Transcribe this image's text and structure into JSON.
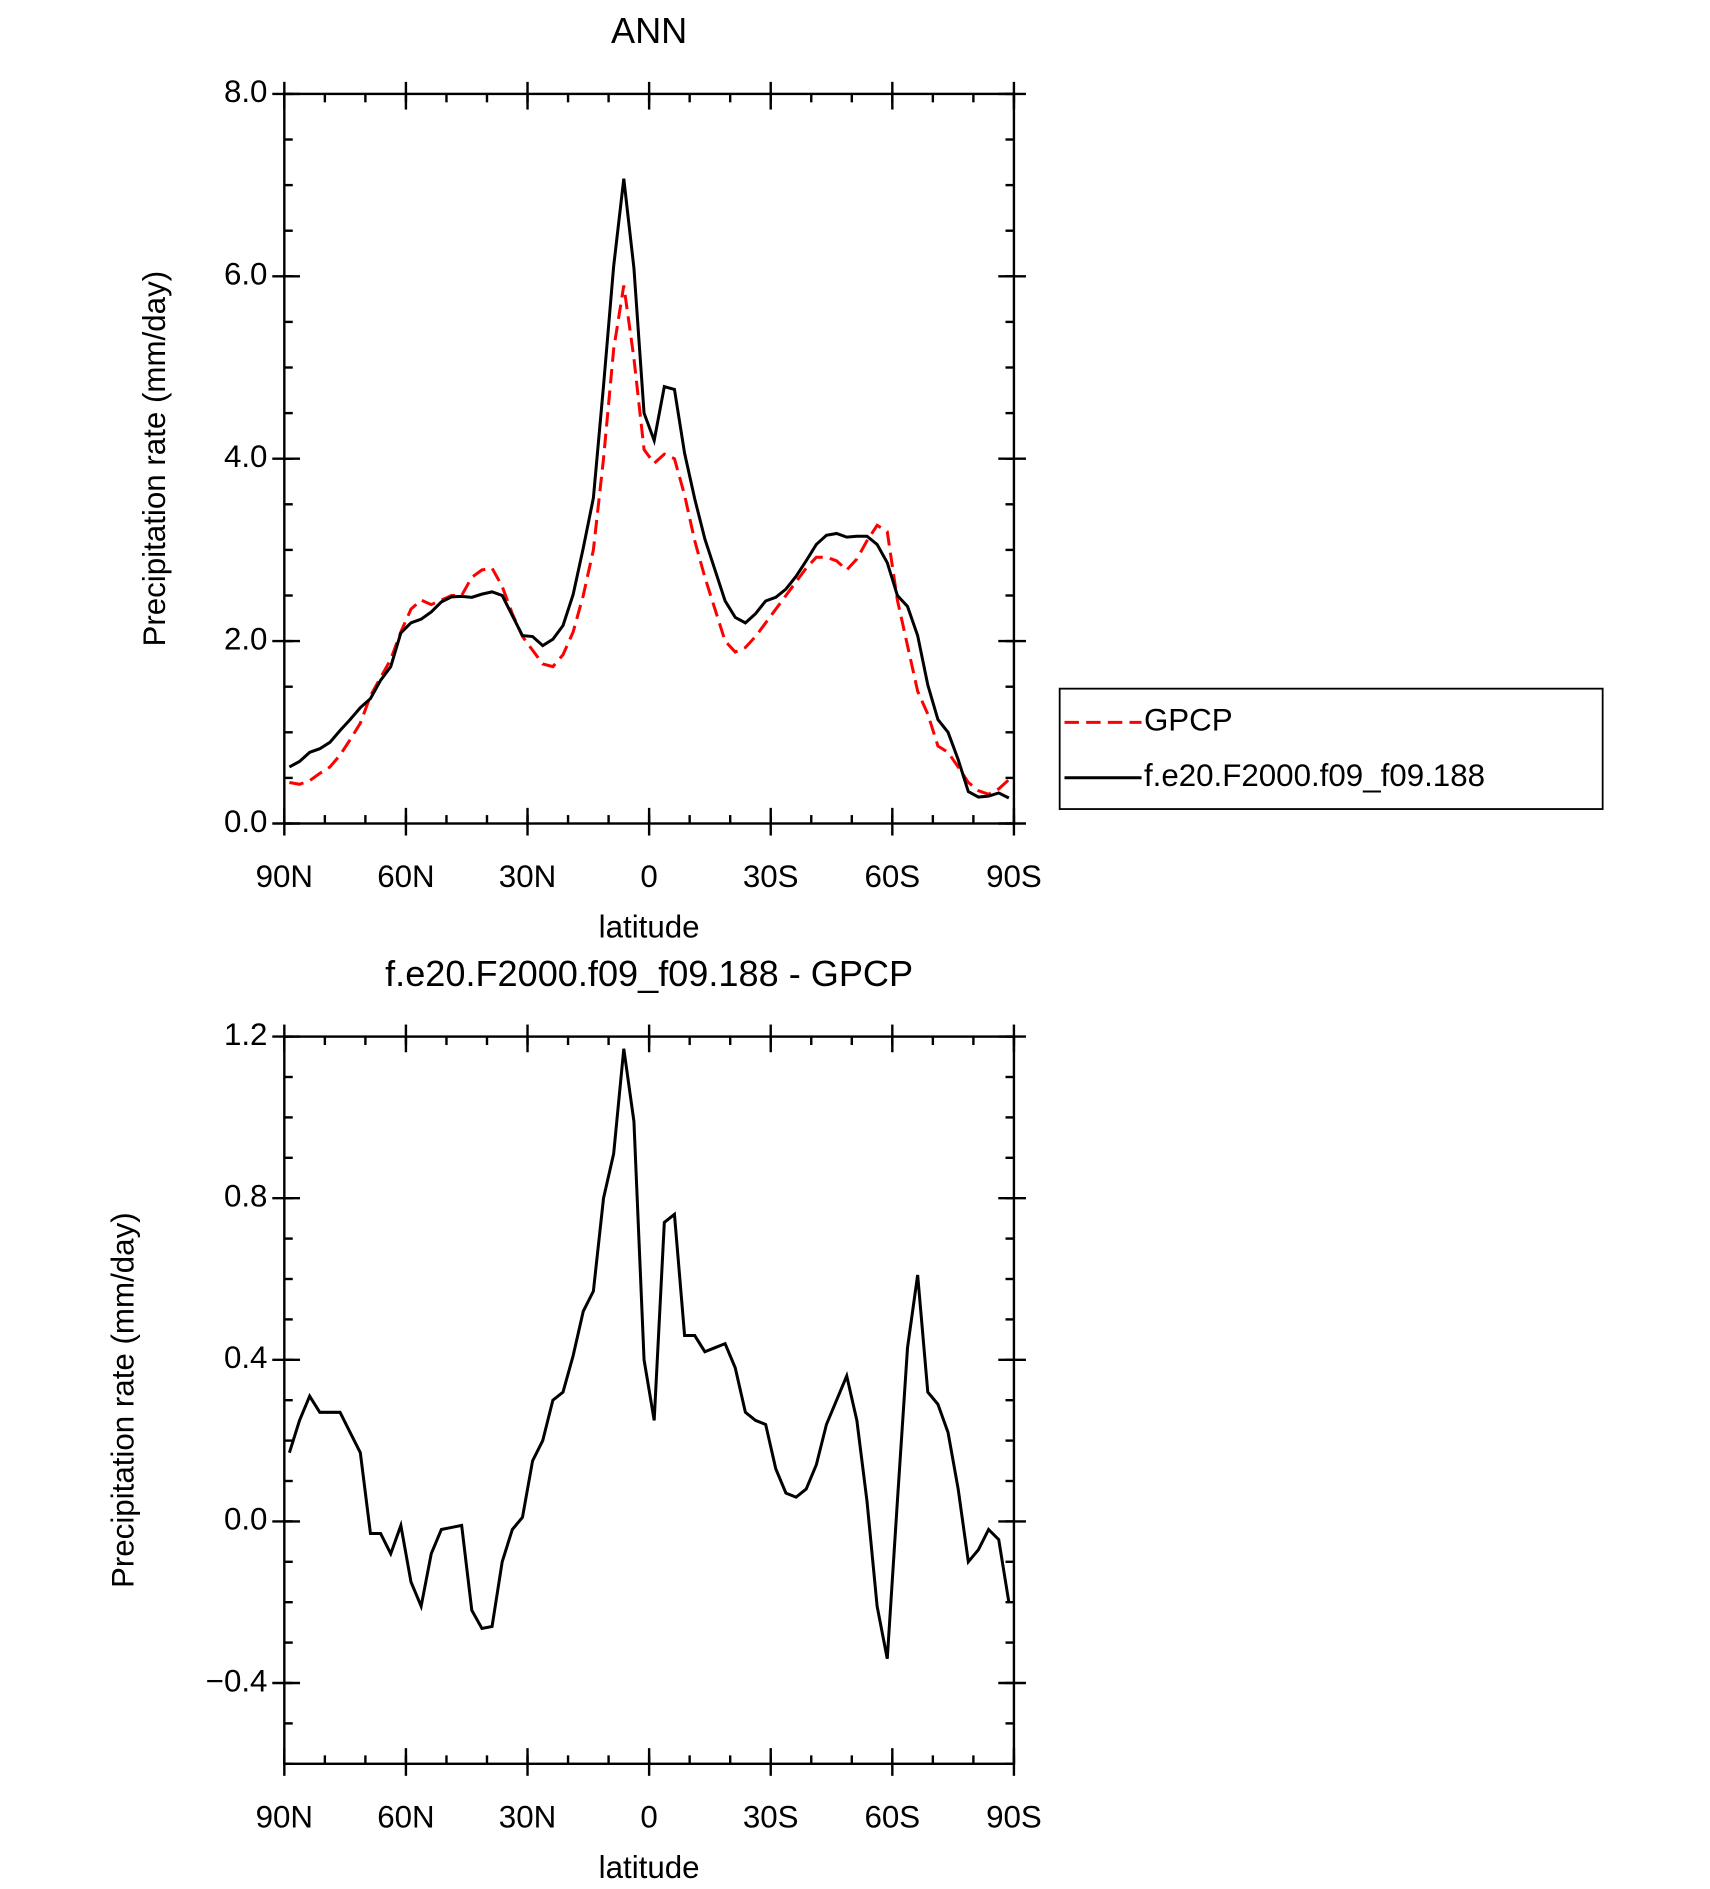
{
  "chart_data": [
    {
      "type": "line",
      "title": "ANN",
      "x_label": "latitude",
      "y_label": "Precipitation rate (mm/day)",
      "xlim": [
        90,
        -90
      ],
      "xticks": [
        {
          "value": 90,
          "label": "90N"
        },
        {
          "value": 60,
          "label": "60N"
        },
        {
          "value": 30,
          "label": "30N"
        },
        0,
        {
          "value": -30,
          "label": "30S"
        },
        {
          "value": -60,
          "label": "60S"
        },
        {
          "value": -90,
          "label": "90S"
        }
      ],
      "ylim": [
        0,
        8
      ],
      "yticks": [
        {
          "value": 0,
          "label": "0.0"
        },
        {
          "value": 2,
          "label": "2.0"
        },
        {
          "value": 4,
          "label": "4.0"
        },
        {
          "value": 6,
          "label": "6.0"
        },
        {
          "value": 8,
          "label": "8.0"
        }
      ],
      "legend": "right",
      "x": [
        88.75,
        86.25,
        83.75,
        81.25,
        78.75,
        76.25,
        73.75,
        71.25,
        68.75,
        66.25,
        63.75,
        61.25,
        58.75,
        56.25,
        53.75,
        51.25,
        48.75,
        46.25,
        43.75,
        41.25,
        38.75,
        36.25,
        33.75,
        31.25,
        28.75,
        26.25,
        23.75,
        21.25,
        18.75,
        16.25,
        13.75,
        11.25,
        8.75,
        6.25,
        3.75,
        1.25,
        -1.25,
        -3.75,
        -6.25,
        -8.75,
        -11.25,
        -13.75,
        -16.25,
        -18.75,
        -21.25,
        -23.75,
        -26.25,
        -28.75,
        -31.25,
        -33.75,
        -36.25,
        -38.75,
        -41.25,
        -43.75,
        -46.25,
        -48.75,
        -51.25,
        -53.75,
        -56.25,
        -58.75,
        -61.25,
        -63.75,
        -66.25,
        -68.75,
        -71.25,
        -73.75,
        -76.25,
        -78.75,
        -81.25,
        -83.75,
        -86.25,
        -88.75
      ],
      "series": [
        {
          "name": "GPCP",
          "color": "#ff0000",
          "dashed": true,
          "values": [
            0.45,
            0.43,
            0.47,
            0.55,
            0.62,
            0.75,
            0.92,
            1.1,
            1.4,
            1.6,
            1.8,
            2.1,
            2.35,
            2.45,
            2.4,
            2.45,
            2.5,
            2.5,
            2.7,
            2.78,
            2.8,
            2.6,
            2.3,
            2.05,
            1.9,
            1.75,
            1.72,
            1.85,
            2.1,
            2.5,
            3.0,
            4.0,
            5.2,
            5.9,
            5.1,
            4.1,
            3.95,
            4.05,
            4.0,
            3.6,
            3.1,
            2.7,
            2.35,
            2.0,
            1.88,
            1.93,
            2.05,
            2.2,
            2.35,
            2.5,
            2.65,
            2.8,
            2.92,
            2.92,
            2.88,
            2.78,
            2.9,
            3.1,
            3.27,
            3.2,
            2.45,
            1.95,
            1.45,
            1.2,
            0.85,
            0.78,
            0.62,
            0.45,
            0.36,
            0.32,
            0.38,
            0.48
          ]
        },
        {
          "name": "f.e20.F2000.f09_f09.188",
          "color": "#000000",
          "dashed": false,
          "values": [
            0.62,
            0.68,
            0.78,
            0.82,
            0.89,
            1.02,
            1.14,
            1.27,
            1.37,
            1.57,
            1.72,
            2.09,
            2.2,
            2.24,
            2.32,
            2.43,
            2.485,
            2.49,
            2.48,
            2.515,
            2.54,
            2.5,
            2.28,
            2.06,
            2.05,
            1.95,
            2.02,
            2.17,
            2.51,
            3.02,
            3.57,
            4.8,
            6.11,
            7.07,
            6.09,
            4.5,
            4.2,
            4.79,
            4.76,
            4.06,
            3.56,
            3.12,
            2.78,
            2.44,
            2.26,
            2.2,
            2.3,
            2.44,
            2.48,
            2.57,
            2.71,
            2.88,
            3.06,
            3.16,
            3.18,
            3.14,
            3.15,
            3.15,
            3.06,
            2.86,
            2.5,
            2.38,
            2.06,
            1.52,
            1.14,
            1.0,
            0.7,
            0.35,
            0.29,
            0.3,
            0.335,
            0.28
          ]
        }
      ]
    },
    {
      "type": "line",
      "title": "f.e20.F2000.f09_f09.188 - GPCP",
      "x_label": "latitude",
      "y_label": "Precipitation rate (mm/day)",
      "xlim": [
        90,
        -90
      ],
      "xticks": [
        {
          "value": 90,
          "label": "90N"
        },
        {
          "value": 60,
          "label": "60N"
        },
        {
          "value": 30,
          "label": "30N"
        },
        0,
        {
          "value": -30,
          "label": "30S"
        },
        {
          "value": -60,
          "label": "60S"
        },
        {
          "value": -90,
          "label": "90S"
        }
      ],
      "ylim": [
        -0.6,
        1.2
      ],
      "yticks": [
        {
          "value": -0.4,
          "label": "−0.4"
        },
        {
          "value": 0,
          "label": "0.0"
        },
        0.4,
        0.8,
        1.2
      ],
      "x": [
        88.75,
        86.25,
        83.75,
        81.25,
        78.75,
        76.25,
        73.75,
        71.25,
        68.75,
        66.25,
        63.75,
        61.25,
        58.75,
        56.25,
        53.75,
        51.25,
        48.75,
        46.25,
        43.75,
        41.25,
        38.75,
        36.25,
        33.75,
        31.25,
        28.75,
        26.25,
        23.75,
        21.25,
        18.75,
        16.25,
        13.75,
        11.25,
        8.75,
        6.25,
        3.75,
        1.25,
        -1.25,
        -3.75,
        -6.25,
        -8.75,
        -11.25,
        -13.75,
        -16.25,
        -18.75,
        -21.25,
        -23.75,
        -26.25,
        -28.75,
        -31.25,
        -33.75,
        -36.25,
        -38.75,
        -41.25,
        -43.75,
        -46.25,
        -48.75,
        -51.25,
        -53.75,
        -56.25,
        -58.75,
        -61.25,
        -63.75,
        -66.25,
        -68.75,
        -71.25,
        -73.75,
        -76.25,
        -78.75,
        -81.25,
        -83.75,
        -86.25,
        -88.75
      ],
      "series": [
        {
          "color": "#000000",
          "dashed": false,
          "values": [
            0.17,
            0.25,
            0.31,
            0.27,
            0.27,
            0.27,
            0.22,
            0.17,
            -0.03,
            -0.03,
            -0.08,
            -0.01,
            -0.15,
            -0.21,
            -0.08,
            -0.02,
            -0.015,
            -0.01,
            -0.22,
            -0.265,
            -0.26,
            -0.1,
            -0.02,
            0.01,
            0.15,
            0.2,
            0.3,
            0.32,
            0.41,
            0.52,
            0.57,
            0.8,
            0.91,
            1.17,
            0.99,
            0.4,
            0.25,
            0.74,
            0.76,
            0.46,
            0.46,
            0.42,
            0.43,
            0.44,
            0.38,
            0.27,
            0.25,
            0.24,
            0.13,
            0.07,
            0.06,
            0.08,
            0.14,
            0.24,
            0.3,
            0.36,
            0.25,
            0.05,
            -0.21,
            -0.34,
            0.05,
            0.43,
            0.61,
            0.32,
            0.29,
            0.22,
            0.08,
            -0.1,
            -0.07,
            -0.02,
            -0.045,
            -0.2
          ]
        }
      ]
    }
  ]
}
